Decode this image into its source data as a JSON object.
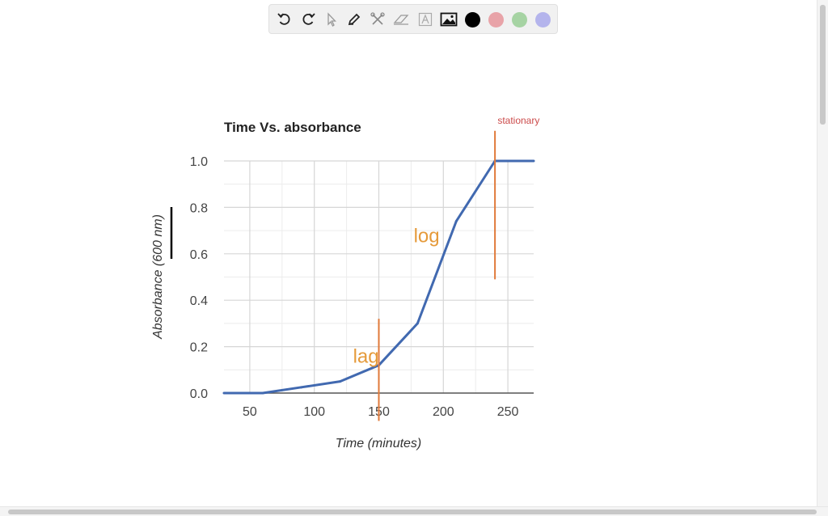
{
  "toolbar": {
    "tools": [
      "undo-icon",
      "redo-icon",
      "pointer-icon",
      "pencil-icon",
      "tools-icon",
      "eraser-icon",
      "text-icon",
      "image-icon"
    ],
    "colors": [
      "#000000",
      "#e8a3a8",
      "#a6d3a3",
      "#b4b4ec"
    ]
  },
  "chart_data": {
    "type": "line",
    "title": "Time Vs. absorbance",
    "xlabel": "Time (minutes)",
    "ylabel": "Absorbance (600 nm)",
    "xlim": [
      30,
      270
    ],
    "ylim": [
      0,
      1.0
    ],
    "xticks": [
      50,
      100,
      150,
      200,
      250
    ],
    "yticks": [
      "0.0",
      "0.2",
      "0.4",
      "0.6",
      "0.8",
      "1.0"
    ],
    "grid": true,
    "series": [
      {
        "color": "#4169b0",
        "x": [
          30,
          60,
          90,
          120,
          150,
          180,
          210,
          240,
          270
        ],
        "y": [
          0.0,
          0.0,
          0.025,
          0.05,
          0.12,
          0.3,
          0.74,
          1.0,
          1.0
        ]
      }
    ],
    "annotations": [
      {
        "text": "lag",
        "x": 130,
        "y": 0.13,
        "color": "#e59a3a"
      },
      {
        "text": "log",
        "x": 177,
        "y": 0.65,
        "color": "#e59a3a"
      },
      {
        "text": "stationary",
        "x": 242,
        "y": 1.16,
        "color": "#cc4b4b"
      }
    ],
    "marker_lines": [
      {
        "x": 150,
        "y_from": -0.12,
        "y_to": 0.32,
        "color": "#e07a3a"
      },
      {
        "x": 240,
        "y_from": 0.49,
        "y_to": 1.13,
        "color": "#e07a3a"
      }
    ],
    "ink_stroke_color": "#000000"
  }
}
